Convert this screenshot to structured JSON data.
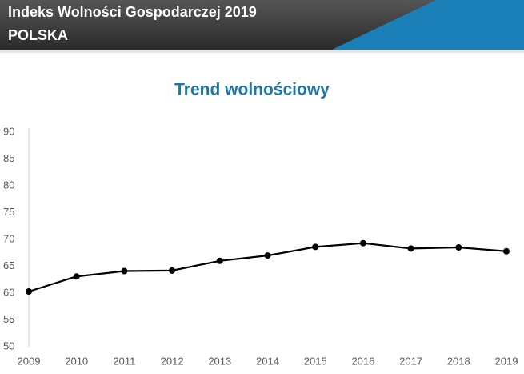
{
  "header": {
    "title": "Indeks Wolności Gospodarczej 2019",
    "subtitle": "POLSKA"
  },
  "chart_data": {
    "type": "line",
    "title": "Trend wolnościowy",
    "categories": [
      "2009",
      "2010",
      "2011",
      "2012",
      "2013",
      "2014",
      "2015",
      "2016",
      "2017",
      "2018",
      "2019"
    ],
    "values": [
      60.3,
      63.1,
      64.1,
      64.2,
      66.0,
      67.0,
      68.6,
      69.3,
      68.3,
      68.5,
      67.8
    ],
    "color": "#000000",
    "ylim": [
      50,
      90
    ],
    "yticks": [
      50,
      55,
      60,
      65,
      70,
      75,
      80,
      85,
      90
    ],
    "grid": false
  }
}
